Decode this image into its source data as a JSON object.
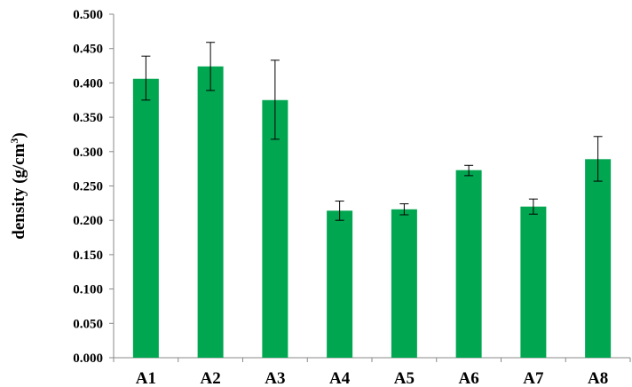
{
  "chart_data": {
    "type": "bar",
    "categories": [
      "A1",
      "A2",
      "A3",
      "A4",
      "A5",
      "A6",
      "A7",
      "A8"
    ],
    "values": [
      0.406,
      0.424,
      0.375,
      0.214,
      0.216,
      0.273,
      0.22,
      0.289
    ],
    "error_bars": [
      {
        "low": 0.375,
        "high": 0.439
      },
      {
        "low": 0.389,
        "high": 0.459
      },
      {
        "low": 0.318,
        "high": 0.433
      },
      {
        "low": 0.2,
        "high": 0.228
      },
      {
        "low": 0.208,
        "high": 0.224
      },
      {
        "low": 0.265,
        "high": 0.28
      },
      {
        "low": 0.209,
        "high": 0.231
      },
      {
        "low": 0.257,
        "high": 0.322
      }
    ],
    "ylabel": "density (g/cm",
    "ylabel_superscript": "3",
    "ylabel_suffix": ")",
    "ylim": [
      0,
      0.5
    ],
    "yticks": [
      "0.000",
      "0.050",
      "0.100",
      "0.150",
      "0.200",
      "0.250",
      "0.300",
      "0.350",
      "0.400",
      "0.450",
      "0.500"
    ],
    "grid": false,
    "bar_color": "#00a650"
  }
}
